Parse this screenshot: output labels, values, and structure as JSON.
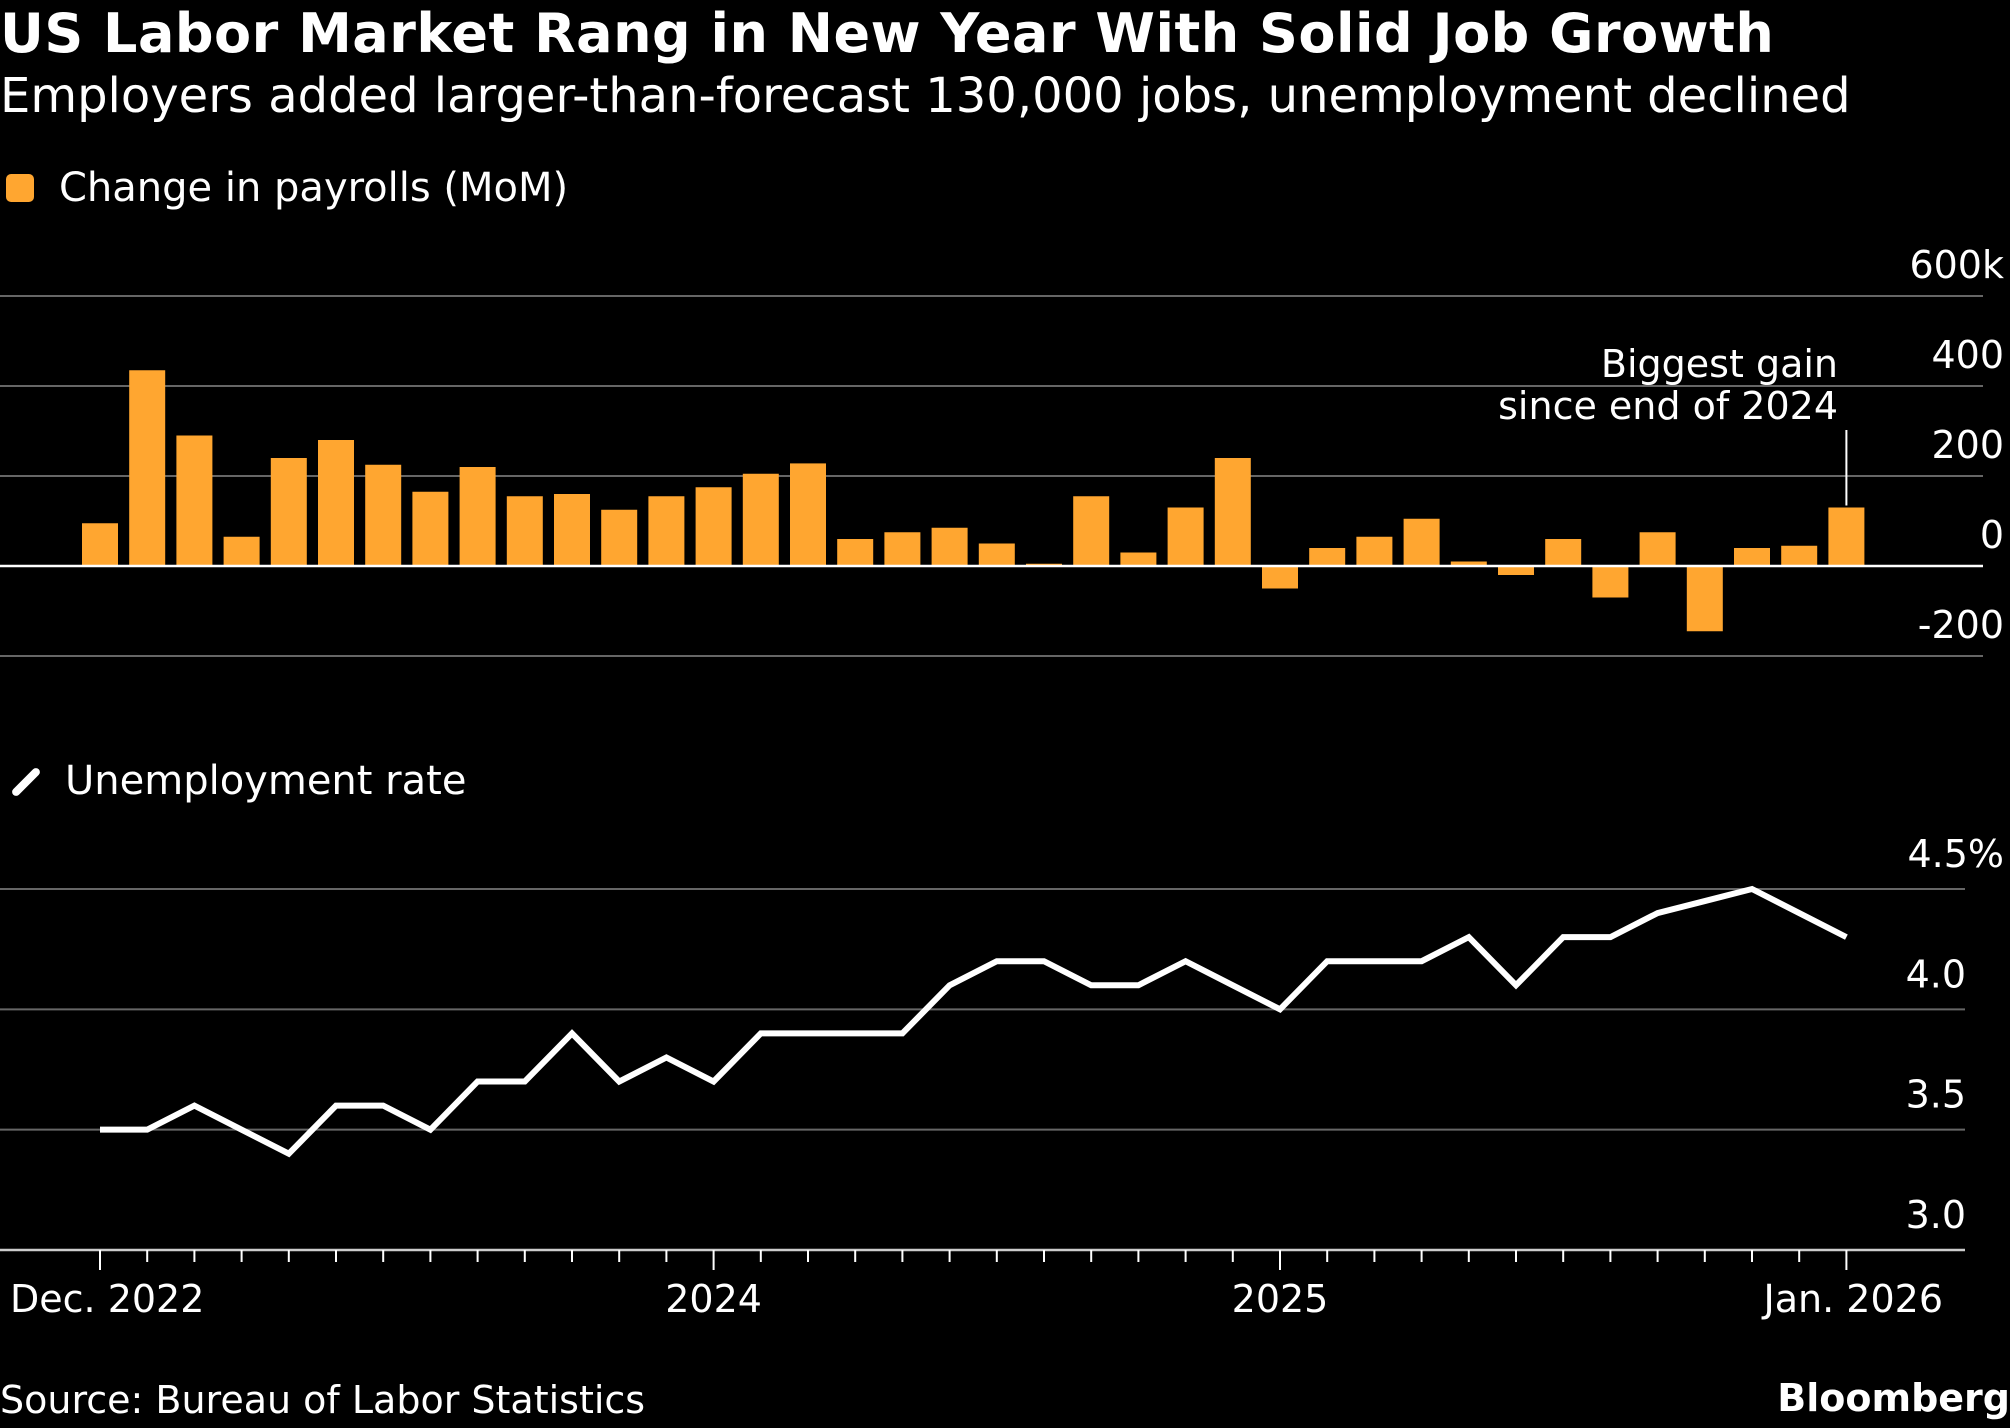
{
  "title": "US Labor Market Rang in New Year With Solid Job Growth",
  "subtitle": "Employers added larger-than-forecast 130,000 jobs, unemployment declined",
  "source": "Source: Bureau of Labor Statistics",
  "brand": "Bloomberg",
  "colors": {
    "bar": "#FFA630",
    "line": "#FFFFFF",
    "grid": "#666666",
    "background": "#000000"
  },
  "chart_data": [
    {
      "type": "bar",
      "legend": "Change in payrolls (MoM)",
      "unit": "thousands",
      "x_range": [
        "Dec. 2022",
        "Jan. 2026"
      ],
      "values": [
        95,
        435,
        290,
        65,
        240,
        280,
        225,
        165,
        220,
        155,
        160,
        125,
        155,
        175,
        205,
        228,
        60,
        75,
        85,
        50,
        5,
        155,
        30,
        130,
        240,
        -50,
        40,
        65,
        105,
        10,
        -20,
        60,
        -70,
        75,
        -145,
        40,
        45,
        130
      ],
      "ylim": [
        -200,
        600
      ],
      "yticks": [
        "600k",
        "400",
        "200",
        "0",
        "-200"
      ],
      "annotation": {
        "label_lines": [
          "Biggest gain",
          "since end of 2024"
        ],
        "index": 37
      }
    },
    {
      "type": "line",
      "legend": "Unemployment rate",
      "unit": "percent",
      "values": [
        3.5,
        3.5,
        3.6,
        3.5,
        3.4,
        3.6,
        3.6,
        3.5,
        3.7,
        3.7,
        3.9,
        3.7,
        3.8,
        3.7,
        3.9,
        3.9,
        3.9,
        3.9,
        4.1,
        4.2,
        4.2,
        4.1,
        4.1,
        4.2,
        4.1,
        4.0,
        4.2,
        4.2,
        4.2,
        4.3,
        4.1,
        4.3,
        4.3,
        4.4,
        4.45,
        4.5,
        4.4,
        4.3
      ],
      "ylim": [
        3.0,
        4.5
      ],
      "yticks": [
        "4.5%",
        "4.0",
        "3.5",
        "3.0"
      ]
    }
  ],
  "x_axis": {
    "labels": [
      {
        "text": "Dec. 2022",
        "index": 0
      },
      {
        "text": "2024",
        "index": 13
      },
      {
        "text": "2025",
        "index": 25
      },
      {
        "text": "Jan. 2026",
        "index": 37
      }
    ]
  }
}
